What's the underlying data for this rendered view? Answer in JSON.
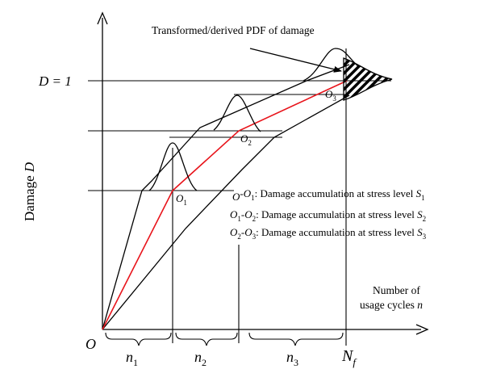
{
  "caption": "Transformed/derived PDF of damage",
  "y_axis": {
    "label_prefix": "Damage ",
    "label_var": "D",
    "level_label": "D = 1"
  },
  "x_axis": {
    "label_line1": "Number of",
    "label_line2_prefix": "usage cycles ",
    "label_line2_var": "n",
    "origin": "O",
    "end_label_base": "N",
    "end_label_sub": "f"
  },
  "intervals": [
    {
      "base": "n",
      "sub": "1"
    },
    {
      "base": "n",
      "sub": "2"
    },
    {
      "base": "n",
      "sub": "3"
    }
  ],
  "points": [
    {
      "base": "O",
      "sub": "1"
    },
    {
      "base": "O",
      "sub": "2"
    },
    {
      "base": "O",
      "sub": "3"
    }
  ],
  "legend": [
    {
      "from": "O",
      "from_sub": "",
      "to": "O",
      "to_sub": "1",
      "text": ": Damage accumulation at stress level ",
      "level": "S",
      "level_sub": "1"
    },
    {
      "from": "O",
      "from_sub": "1",
      "to": "O",
      "to_sub": "2",
      "text": ": Damage accumulation at stress level ",
      "level": "S",
      "level_sub": "2"
    },
    {
      "from": "O",
      "from_sub": "2",
      "to": "O",
      "to_sub": "3",
      "text": ": Damage accumulation at stress level ",
      "level": "S",
      "level_sub": "3"
    }
  ],
  "colors": {
    "mean_path": "#e8141b",
    "lines": "#000000"
  }
}
